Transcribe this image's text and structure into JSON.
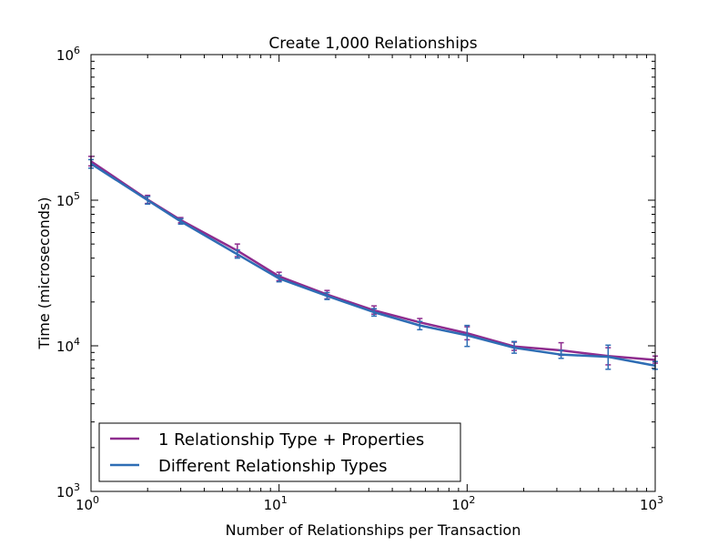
{
  "chart_data": {
    "type": "line",
    "title": "Create 1,000 Relationships",
    "xlabel": "Number of Relationships per Transaction",
    "ylabel": "Time (microseconds)",
    "xscale": "log",
    "yscale": "log",
    "xlim": [
      1,
      1000
    ],
    "ylim": [
      1000,
      1000000
    ],
    "xticks": [
      {
        "base": "10",
        "exp": "0",
        "value": 1
      },
      {
        "base": "10",
        "exp": "1",
        "value": 10
      },
      {
        "base": "10",
        "exp": "2",
        "value": 100
      },
      {
        "base": "10",
        "exp": "3",
        "value": 1000
      }
    ],
    "yticks": [
      {
        "base": "10",
        "exp": "3",
        "value": 1000
      },
      {
        "base": "10",
        "exp": "4",
        "value": 10000
      },
      {
        "base": "10",
        "exp": "5",
        "value": 100000
      },
      {
        "base": "10",
        "exp": "6",
        "value": 1000000
      }
    ],
    "grid": false,
    "legend_position": "lower-left",
    "series": [
      {
        "name": "1 Relationship Type + Properties",
        "color": "#8e2c8e",
        "points": [
          {
            "x": 1,
            "y": 185000,
            "lo": 172000,
            "hi": 200000
          },
          {
            "x": 2,
            "y": 101000,
            "lo": 95000,
            "hi": 108000
          },
          {
            "x": 3,
            "y": 73000,
            "lo": 70000,
            "hi": 76000
          },
          {
            "x": 6,
            "y": 45000,
            "lo": 41000,
            "hi": 50000
          },
          {
            "x": 10,
            "y": 30000,
            "lo": 28000,
            "hi": 32000
          },
          {
            "x": 18,
            "y": 22500,
            "lo": 21000,
            "hi": 24000
          },
          {
            "x": 32,
            "y": 17500,
            "lo": 16500,
            "hi": 18800
          },
          {
            "x": 56,
            "y": 14500,
            "lo": 13800,
            "hi": 15400
          },
          {
            "x": 100,
            "y": 12200,
            "lo": 11000,
            "hi": 13500
          },
          {
            "x": 178,
            "y": 9900,
            "lo": 9300,
            "hi": 10600
          },
          {
            "x": 316,
            "y": 9300,
            "lo": 8600,
            "hi": 10500
          },
          {
            "x": 562,
            "y": 8500,
            "lo": 7400,
            "hi": 9700
          },
          {
            "x": 1000,
            "y": 8000,
            "lo": 7600,
            "hi": 8500
          }
        ]
      },
      {
        "name": "Different Relationship Types",
        "color": "#2e6db4",
        "points": [
          {
            "x": 1,
            "y": 178000,
            "lo": 166000,
            "hi": 190000
          },
          {
            "x": 2,
            "y": 100000,
            "lo": 94000,
            "hi": 106000
          },
          {
            "x": 3,
            "y": 71500,
            "lo": 68500,
            "hi": 74500
          },
          {
            "x": 6,
            "y": 42500,
            "lo": 40000,
            "hi": 45500
          },
          {
            "x": 10,
            "y": 29000,
            "lo": 27500,
            "hi": 30500
          },
          {
            "x": 18,
            "y": 22000,
            "lo": 20800,
            "hi": 23200
          },
          {
            "x": 32,
            "y": 17000,
            "lo": 16000,
            "hi": 18000
          },
          {
            "x": 56,
            "y": 13800,
            "lo": 12900,
            "hi": 14700
          },
          {
            "x": 100,
            "y": 11800,
            "lo": 9900,
            "hi": 13800
          },
          {
            "x": 178,
            "y": 9700,
            "lo": 8900,
            "hi": 10700
          },
          {
            "x": 316,
            "y": 8700,
            "lo": 8200,
            "hi": 9300
          },
          {
            "x": 562,
            "y": 8400,
            "lo": 6900,
            "hi": 10100
          },
          {
            "x": 1000,
            "y": 7300,
            "lo": 6900,
            "hi": 7800
          }
        ]
      }
    ]
  }
}
